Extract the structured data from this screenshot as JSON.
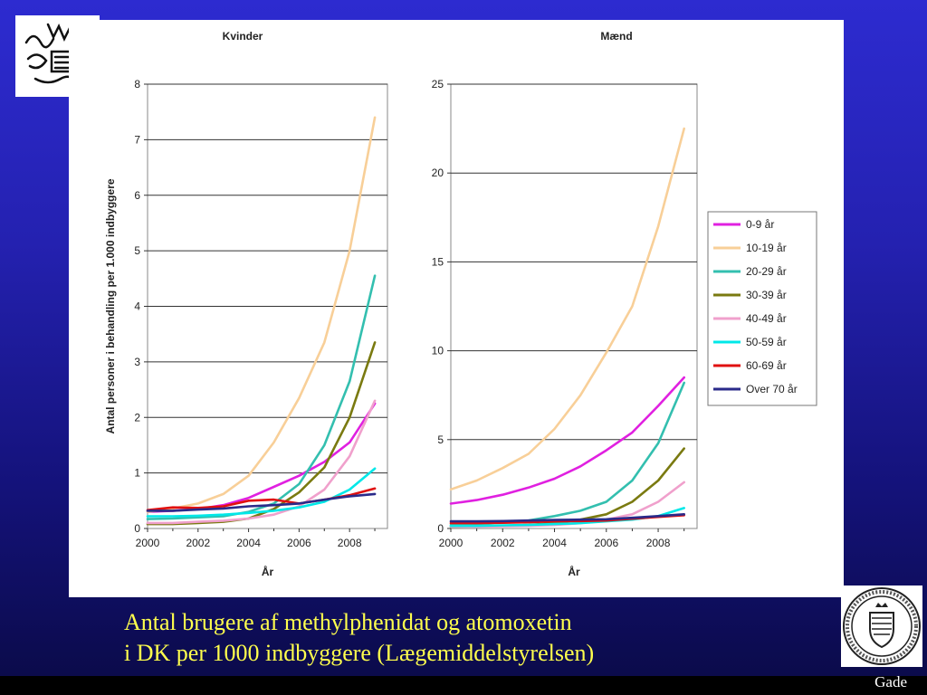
{
  "caption": {
    "line1": "Antal brugere af methylphenidat og atomoxetin",
    "line2": "i DK per 1000 indbyggere (Lægemiddelstyrelsen)"
  },
  "footer": {
    "author": "Gade"
  },
  "chart_data": [
    {
      "type": "line",
      "title": "Kvinder",
      "xlabel": "År",
      "ylabel": "Antal personer i behandling per 1.000 indbyggere",
      "xlim": [
        2000,
        2009.5
      ],
      "ylim": [
        0,
        8
      ],
      "xticks": [
        2000,
        2002,
        2004,
        2006,
        2008
      ],
      "yticks": [
        0,
        1,
        2,
        3,
        4,
        5,
        6,
        7,
        8
      ],
      "grid": "horizontal",
      "x": [
        2000,
        2001,
        2002,
        2003,
        2004,
        2005,
        2006,
        2007,
        2008,
        2009
      ],
      "series": [
        {
          "name": "0-9 år",
          "color": "#e020e0",
          "values": [
            0.3,
            0.32,
            0.35,
            0.42,
            0.55,
            0.75,
            0.95,
            1.2,
            1.55,
            2.25
          ]
        },
        {
          "name": "10-19 år",
          "color": "#f8cf98",
          "values": [
            0.3,
            0.36,
            0.45,
            0.62,
            0.95,
            1.55,
            2.35,
            3.35,
            5.0,
            7.4
          ]
        },
        {
          "name": "20-29 år",
          "color": "#33bfaf",
          "values": [
            0.17,
            0.18,
            0.2,
            0.22,
            0.3,
            0.45,
            0.8,
            1.5,
            2.65,
            4.55
          ]
        },
        {
          "name": "30-39 år",
          "color": "#7a7a10",
          "values": [
            0.08,
            0.08,
            0.1,
            0.12,
            0.18,
            0.35,
            0.65,
            1.1,
            2.0,
            3.35
          ]
        },
        {
          "name": "40-49 år",
          "color": "#f0a0cc",
          "values": [
            0.1,
            0.1,
            0.12,
            0.14,
            0.18,
            0.25,
            0.4,
            0.7,
            1.3,
            2.3
          ]
        },
        {
          "name": "50-59 år",
          "color": "#00e8e8",
          "values": [
            0.22,
            0.22,
            0.23,
            0.25,
            0.28,
            0.32,
            0.38,
            0.48,
            0.7,
            1.08
          ]
        },
        {
          "name": "60-69 år",
          "color": "#e01010",
          "values": [
            0.33,
            0.38,
            0.37,
            0.4,
            0.5,
            0.52,
            0.45,
            0.52,
            0.6,
            0.72
          ]
        },
        {
          "name": "Over 70 år",
          "color": "#2a2a8a",
          "values": [
            0.32,
            0.32,
            0.34,
            0.36,
            0.4,
            0.42,
            0.45,
            0.52,
            0.58,
            0.62
          ]
        }
      ]
    },
    {
      "type": "line",
      "title": "Mænd",
      "xlabel": "År",
      "ylabel": "",
      "xlim": [
        2000,
        2009.5
      ],
      "ylim": [
        0,
        25
      ],
      "xticks": [
        2000,
        2002,
        2004,
        2006,
        2008
      ],
      "yticks": [
        0,
        5,
        10,
        15,
        20,
        25
      ],
      "grid": "horizontal",
      "legend": "right",
      "x": [
        2000,
        2001,
        2002,
        2003,
        2004,
        2005,
        2006,
        2007,
        2008,
        2009
      ],
      "series": [
        {
          "name": "0-9 år",
          "color": "#e020e0",
          "values": [
            1.4,
            1.6,
            1.9,
            2.3,
            2.8,
            3.5,
            4.4,
            5.4,
            6.9,
            8.5
          ]
        },
        {
          "name": "10-19 år",
          "color": "#f8cf98",
          "values": [
            2.2,
            2.7,
            3.4,
            4.2,
            5.6,
            7.5,
            9.9,
            12.5,
            17.0,
            22.5
          ]
        },
        {
          "name": "20-29 år",
          "color": "#33bfaf",
          "values": [
            0.2,
            0.25,
            0.35,
            0.45,
            0.7,
            1.0,
            1.5,
            2.7,
            4.8,
            8.2
          ]
        },
        {
          "name": "30-39 år",
          "color": "#7a7a10",
          "values": [
            0.1,
            0.12,
            0.15,
            0.2,
            0.3,
            0.5,
            0.8,
            1.5,
            2.7,
            4.5
          ]
        },
        {
          "name": "40-49 år",
          "color": "#f0a0cc",
          "values": [
            0.1,
            0.1,
            0.12,
            0.15,
            0.2,
            0.3,
            0.5,
            0.8,
            1.5,
            2.6
          ]
        },
        {
          "name": "50-59 år",
          "color": "#00e8e8",
          "values": [
            0.15,
            0.15,
            0.18,
            0.2,
            0.25,
            0.3,
            0.4,
            0.5,
            0.7,
            1.15
          ]
        },
        {
          "name": "60-69 år",
          "color": "#e01010",
          "values": [
            0.3,
            0.3,
            0.32,
            0.35,
            0.4,
            0.42,
            0.45,
            0.55,
            0.65,
            0.75
          ]
        },
        {
          "name": "Over 70 år",
          "color": "#2a2a8a",
          "values": [
            0.4,
            0.4,
            0.42,
            0.45,
            0.48,
            0.5,
            0.52,
            0.6,
            0.7,
            0.8
          ]
        }
      ]
    }
  ]
}
